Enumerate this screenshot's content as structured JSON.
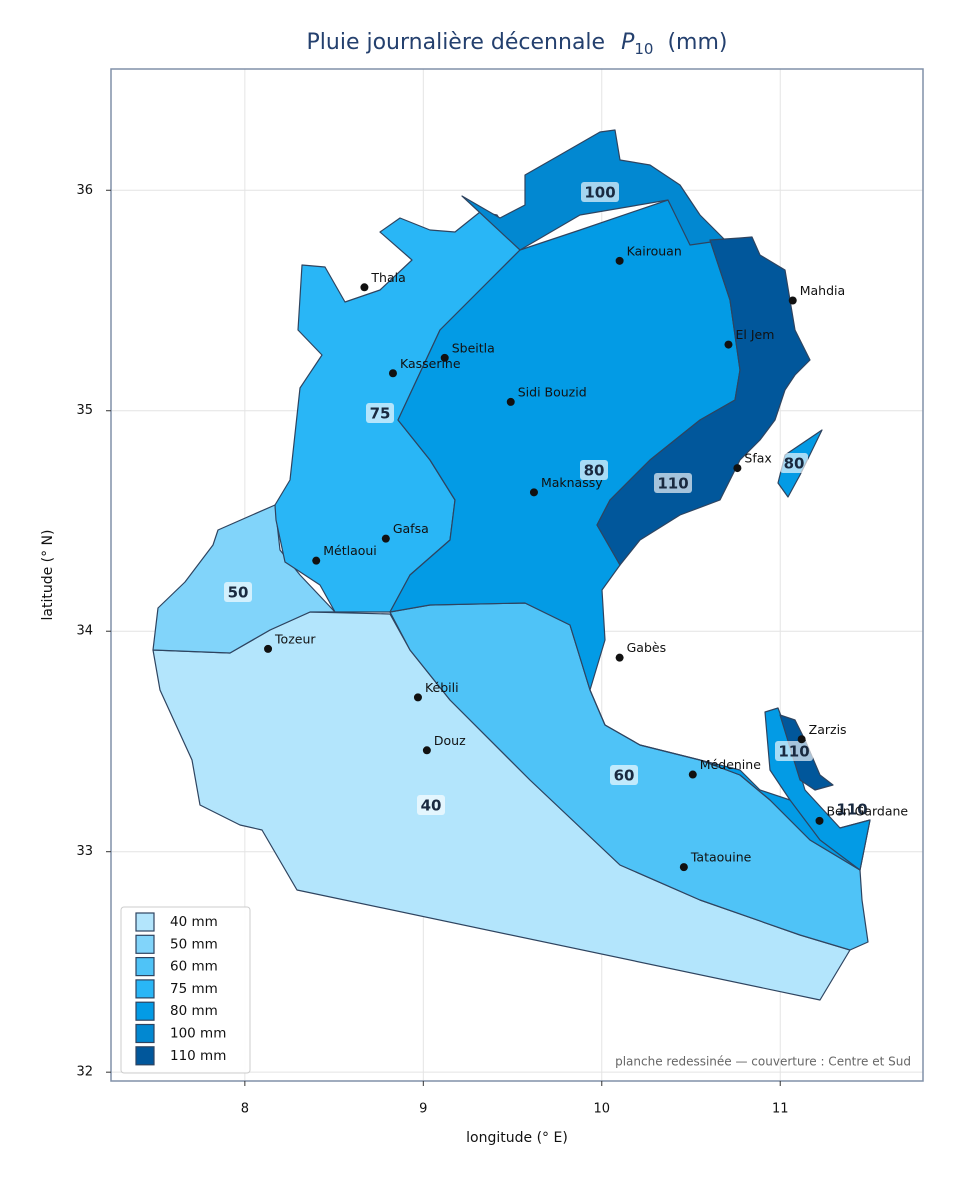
{
  "title": {
    "text": "Pluie journalière décennale",
    "symbol": "P",
    "subscript": "10",
    "unit": "(mm)"
  },
  "x_axis": {
    "label": "longitude (° E)",
    "lim": [
      7.25,
      11.8
    ],
    "ticks": [
      8,
      9,
      10,
      11
    ]
  },
  "y_axis": {
    "label": "latitude (° N)",
    "lim": [
      31.96,
      36.55
    ],
    "ticks": [
      32,
      33,
      34,
      35,
      36
    ]
  },
  "legend": [
    {
      "label": "40 mm",
      "color": "#b3e5fc"
    },
    {
      "label": "50 mm",
      "color": "#81d4fa"
    },
    {
      "label": "60 mm",
      "color": "#4fc3f7"
    },
    {
      "label": "75 mm",
      "color": "#29b6f6"
    },
    {
      "label": "80 mm",
      "color": "#039be5"
    },
    {
      "label": "100 mm",
      "color": "#0288d1"
    },
    {
      "label": "110 mm",
      "color": "#01579b"
    }
  ],
  "zone_labels": [
    100,
    75,
    80,
    110,
    80,
    50,
    60,
    40,
    110,
    110
  ],
  "cities": [
    {
      "name": "Thala",
      "lon": 8.67,
      "lat": 35.56
    },
    {
      "name": "Kasserine",
      "lon": 8.83,
      "lat": 35.17
    },
    {
      "name": "Sbeitla",
      "lon": 9.12,
      "lat": 35.24
    },
    {
      "name": "Kairouan",
      "lon": 10.1,
      "lat": 35.68
    },
    {
      "name": "Mahdia",
      "lon": 11.07,
      "lat": 35.5
    },
    {
      "name": "El Jem",
      "lon": 10.71,
      "lat": 35.3
    },
    {
      "name": "Sidi Bouzid",
      "lon": 9.49,
      "lat": 35.04
    },
    {
      "name": "Sfax",
      "lon": 10.76,
      "lat": 34.74
    },
    {
      "name": "Maknassy",
      "lon": 9.62,
      "lat": 34.63
    },
    {
      "name": "Gafsa",
      "lon": 8.79,
      "lat": 34.42
    },
    {
      "name": "Métlaoui",
      "lon": 8.4,
      "lat": 34.32
    },
    {
      "name": "Tozeur",
      "lon": 8.13,
      "lat": 33.92
    },
    {
      "name": "Gabès",
      "lon": 10.1,
      "lat": 33.88
    },
    {
      "name": "Kébili",
      "lon": 8.97,
      "lat": 33.7
    },
    {
      "name": "Douz",
      "lon": 9.02,
      "lat": 33.46
    },
    {
      "name": "Zarzis",
      "lon": 11.12,
      "lat": 33.51
    },
    {
      "name": "Médenine",
      "lon": 10.51,
      "lat": 33.35
    },
    {
      "name": "Ben Gardane",
      "lon": 11.22,
      "lat": 33.14
    },
    {
      "name": "Tataouine",
      "lon": 10.46,
      "lat": 32.93
    }
  ],
  "footnote": "planche redessinée — couverture : Centre et Sud"
}
